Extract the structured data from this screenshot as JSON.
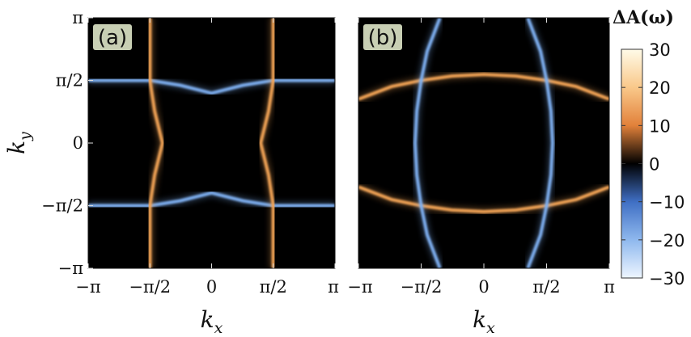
{
  "chart_data": [
    {
      "type": "heatmap",
      "panel_label": "(a)",
      "xlabel": "k_x",
      "ylabel": "k_y",
      "xlim": [
        -3.1416,
        3.1416
      ],
      "ylim": [
        -3.1416,
        3.1416
      ],
      "x_ticks": [
        {
          "value": -3.1416,
          "label": "−π"
        },
        {
          "value": -1.5708,
          "label": "−π/2"
        },
        {
          "value": 0,
          "label": "0"
        },
        {
          "value": 1.5708,
          "label": "π/2"
        },
        {
          "value": 3.1416,
          "label": "π"
        }
      ],
      "y_ticks": [
        {
          "value": 3.1416,
          "label": "π"
        },
        {
          "value": 1.5708,
          "label": "π/2"
        },
        {
          "value": 0,
          "label": "0"
        },
        {
          "value": -1.5708,
          "label": "−π/2"
        },
        {
          "value": -3.1416,
          "label": "−π"
        }
      ],
      "background": "#000000",
      "series": [
        {
          "sign": "negative",
          "color": "#7fb0f2",
          "points": [
            [
              -3.1416,
              1.57
            ],
            [
              -1.57,
              1.57
            ],
            [
              -0.8,
              1.45
            ],
            [
              0,
              1.25
            ],
            [
              0.8,
              1.45
            ],
            [
              1.57,
              1.57
            ],
            [
              3.1416,
              1.57
            ]
          ]
        },
        {
          "sign": "negative",
          "color": "#7fb0f2",
          "points": [
            [
              -3.1416,
              -1.57
            ],
            [
              -1.57,
              -1.57
            ],
            [
              -0.8,
              -1.45
            ],
            [
              0,
              -1.25
            ],
            [
              0.8,
              -1.45
            ],
            [
              1.57,
              -1.57
            ],
            [
              3.1416,
              -1.57
            ]
          ]
        },
        {
          "sign": "positive",
          "color": "#f4a557",
          "points": [
            [
              -1.57,
              3.1416
            ],
            [
              -1.57,
              1.57
            ],
            [
              -1.45,
              0.8
            ],
            [
              -1.25,
              0
            ],
            [
              -1.45,
              -0.8
            ],
            [
              -1.57,
              -1.57
            ],
            [
              -1.57,
              -3.1416
            ]
          ]
        },
        {
          "sign": "positive",
          "color": "#f4a557",
          "points": [
            [
              1.57,
              3.1416
            ],
            [
              1.57,
              1.57
            ],
            [
              1.45,
              0.8
            ],
            [
              1.25,
              0
            ],
            [
              1.45,
              -0.8
            ],
            [
              1.57,
              -1.57
            ],
            [
              1.57,
              -3.1416
            ]
          ]
        }
      ]
    },
    {
      "type": "heatmap",
      "panel_label": "(b)",
      "xlabel": "k_x",
      "ylabel": "",
      "xlim": [
        -3.1416,
        3.1416
      ],
      "ylim": [
        -3.1416,
        3.1416
      ],
      "x_ticks": [
        {
          "value": -3.1416,
          "label": "−π"
        },
        {
          "value": -1.5708,
          "label": "−π/2"
        },
        {
          "value": 0,
          "label": "0"
        },
        {
          "value": 1.5708,
          "label": "π/2"
        },
        {
          "value": 3.1416,
          "label": "π"
        }
      ],
      "background": "#000000",
      "series": [
        {
          "sign": "positive",
          "color": "#f4a557",
          "points": [
            [
              -3.1416,
              1.1
            ],
            [
              -2.3,
              1.42
            ],
            [
              -1.57,
              1.57
            ],
            [
              -0.8,
              1.68
            ],
            [
              0,
              1.72
            ],
            [
              0.8,
              1.68
            ],
            [
              1.57,
              1.57
            ],
            [
              2.3,
              1.42
            ],
            [
              3.1416,
              1.1
            ]
          ]
        },
        {
          "sign": "positive",
          "color": "#f4a557",
          "points": [
            [
              -3.1416,
              -1.1
            ],
            [
              -2.3,
              -1.42
            ],
            [
              -1.57,
              -1.57
            ],
            [
              -0.8,
              -1.68
            ],
            [
              0,
              -1.72
            ],
            [
              0.8,
              -1.68
            ],
            [
              1.57,
              -1.57
            ],
            [
              2.3,
              -1.42
            ],
            [
              3.1416,
              -1.1
            ]
          ]
        },
        {
          "sign": "negative",
          "color": "#7fb0f2",
          "points": [
            [
              -1.1,
              3.1416
            ],
            [
              -1.42,
              2.3
            ],
            [
              -1.57,
              1.57
            ],
            [
              -1.68,
              0.8
            ],
            [
              -1.72,
              0
            ],
            [
              -1.68,
              -0.8
            ],
            [
              -1.57,
              -1.57
            ],
            [
              -1.42,
              -2.3
            ],
            [
              -1.1,
              -3.1416
            ]
          ]
        },
        {
          "sign": "negative",
          "color": "#7fb0f2",
          "points": [
            [
              1.1,
              3.1416
            ],
            [
              1.42,
              2.3
            ],
            [
              1.57,
              1.57
            ],
            [
              1.68,
              0.8
            ],
            [
              1.72,
              0
            ],
            [
              1.68,
              -0.8
            ],
            [
              1.57,
              -1.57
            ],
            [
              1.42,
              -2.3
            ],
            [
              1.1,
              -3.1416
            ]
          ]
        }
      ]
    }
  ],
  "colorbar": {
    "title": "ΔA(ω)",
    "range": [
      -30,
      30
    ],
    "ticks": [
      {
        "value": 30,
        "label": "30"
      },
      {
        "value": 20,
        "label": "20"
      },
      {
        "value": 10,
        "label": "10"
      },
      {
        "value": 0,
        "label": "0"
      },
      {
        "value": -10,
        "label": "−10"
      },
      {
        "value": -20,
        "label": "−20"
      },
      {
        "value": -30,
        "label": "−30"
      }
    ],
    "stops": [
      {
        "value": 30,
        "color": "#fffbe8"
      },
      {
        "value": 20,
        "color": "#f9c88a"
      },
      {
        "value": 10,
        "color": "#e2813a"
      },
      {
        "value": 0,
        "color": "#000000"
      },
      {
        "value": -10,
        "color": "#3f6fc4"
      },
      {
        "value": -20,
        "color": "#8fb8ee"
      },
      {
        "value": -30,
        "color": "#eef6ff"
      }
    ]
  }
}
